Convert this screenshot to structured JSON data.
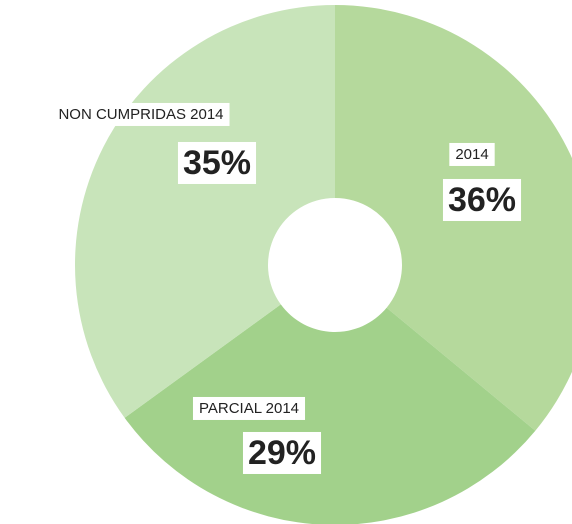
{
  "chart_data": {
    "type": "donut",
    "categories": [
      "2014",
      "PARCIAL 2014",
      "NON CUMPRIDAS 2014"
    ],
    "values": [
      36,
      29,
      35
    ],
    "value_labels": [
      "36%",
      "29%",
      "35%"
    ],
    "colors": [
      "#b5d99c",
      "#a2d18b",
      "#c8e4ba"
    ]
  }
}
